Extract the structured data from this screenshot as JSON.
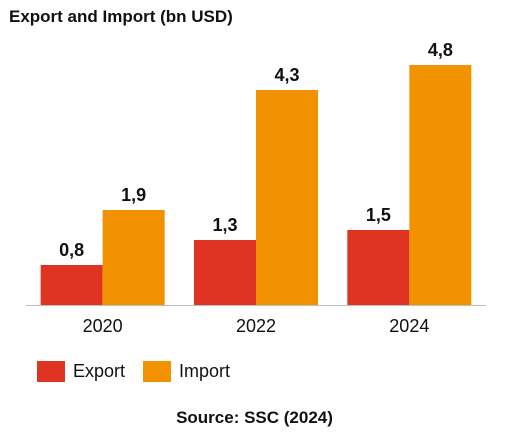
{
  "title": "Export and Import (bn USD)",
  "source": "Source: SSC (2024)",
  "chart_data": {
    "type": "bar",
    "title": "Export and Import (bn USD)",
    "categories": [
      "2020",
      "2022",
      "2024"
    ],
    "series": [
      {
        "name": "Export",
        "color": "#e03423",
        "values": [
          0.8,
          1.3,
          1.5
        ],
        "labels": [
          "0,8",
          "1,3",
          "1,5"
        ]
      },
      {
        "name": "Import",
        "color": "#f39200",
        "values": [
          1.9,
          4.3,
          4.8
        ],
        "labels": [
          "1,9",
          "4,3",
          "4,8"
        ]
      }
    ],
    "xlabel": "",
    "ylabel": "",
    "ylim": [
      0,
      5
    ],
    "grid": false,
    "legend_position": "bottom-left"
  },
  "legend": {
    "items": [
      {
        "label": "Export",
        "color": "#e03423"
      },
      {
        "label": "Import",
        "color": "#f39200"
      }
    ]
  }
}
